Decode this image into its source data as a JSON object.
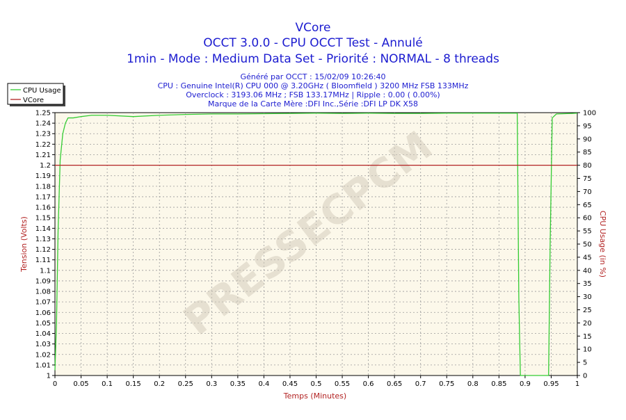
{
  "chart_data": {
    "type": "line",
    "title": "VCore",
    "subtitle_lines": [
      "OCCT 3.0.0 - CPU OCCT Test - Annulé",
      "1min - Mode : Medium Data Set - Priorité : NORMAL - 8 threads"
    ],
    "info_lines": [
      "Généré par OCCT : 15/02/09 10:26:40",
      "CPU : Genuine Intel(R) CPU 000 @ 3.20GHz ( Bloomfield ) 3200 MHz FSB 133MHz",
      "Overclock : 3193.06 MHz ; FSB 133.17MHz | Ripple : 0.00 ( 0.00%)",
      "Marque de la Carte Mère :DFI Inc.,Série :DFI LP DK X58"
    ],
    "watermark": "PRESSECPCM",
    "xlabel": "Temps (Minutes)",
    "ylabel": "Tension (Volts)",
    "y2label": "CPU Usage (in %)",
    "xlim": [
      0,
      1
    ],
    "ylim": [
      1.0,
      1.25
    ],
    "y2lim": [
      0,
      100
    ],
    "x_ticks": [
      "0",
      "0.05",
      "0.1",
      "0.15",
      "0.2",
      "0.25",
      "0.3",
      "0.35",
      "0.4",
      "0.45",
      "0.5",
      "0.55",
      "0.6",
      "0.65",
      "0.7",
      "0.75",
      "0.8",
      "0.85",
      "0.9",
      "0.95",
      "1"
    ],
    "y_ticks": [
      "1",
      "1.01",
      "1.02",
      "1.03",
      "1.04",
      "1.05",
      "1.06",
      "1.07",
      "1.08",
      "1.09",
      "1.1",
      "1.11",
      "1.12",
      "1.13",
      "1.14",
      "1.15",
      "1.16",
      "1.17",
      "1.18",
      "1.19",
      "1.2",
      "1.21",
      "1.22",
      "1.23",
      "1.24",
      "1.25"
    ],
    "y2_ticks": [
      "0",
      "5",
      "10",
      "15",
      "20",
      "25",
      "30",
      "35",
      "40",
      "45",
      "50",
      "55",
      "60",
      "65",
      "70",
      "75",
      "80",
      "85",
      "90",
      "95",
      "100"
    ],
    "grid": true,
    "legend_position": "top-left",
    "series": [
      {
        "name": "CPU Usage",
        "axis": "right",
        "color": "#33cc33",
        "x": [
          0,
          0.003,
          0.006,
          0.01,
          0.015,
          0.02,
          0.025,
          0.035,
          0.05,
          0.07,
          0.1,
          0.15,
          0.2,
          0.25,
          0.3,
          0.35,
          0.4,
          0.45,
          0.5,
          0.55,
          0.6,
          0.65,
          0.7,
          0.75,
          0.8,
          0.85,
          0.885,
          0.888,
          0.891,
          0.945,
          0.948,
          0.952,
          0.96,
          0.975,
          0.99,
          1
        ],
        "y": [
          2,
          20,
          55,
          82,
          92,
          96,
          98,
          98,
          98.5,
          99,
          99,
          98.5,
          99,
          99.3,
          99.5,
          99.5,
          99.6,
          99.7,
          99.8,
          99.7,
          99.8,
          99.7,
          99.7,
          99.8,
          99.8,
          99.8,
          99.8,
          30,
          0,
          0,
          50,
          98,
          99.5,
          99.6,
          99.7,
          99.8
        ]
      },
      {
        "name": "VCore",
        "axis": "left",
        "color": "#b22222",
        "x": [
          0,
          1
        ],
        "y": [
          1.2,
          1.2
        ]
      }
    ]
  }
}
